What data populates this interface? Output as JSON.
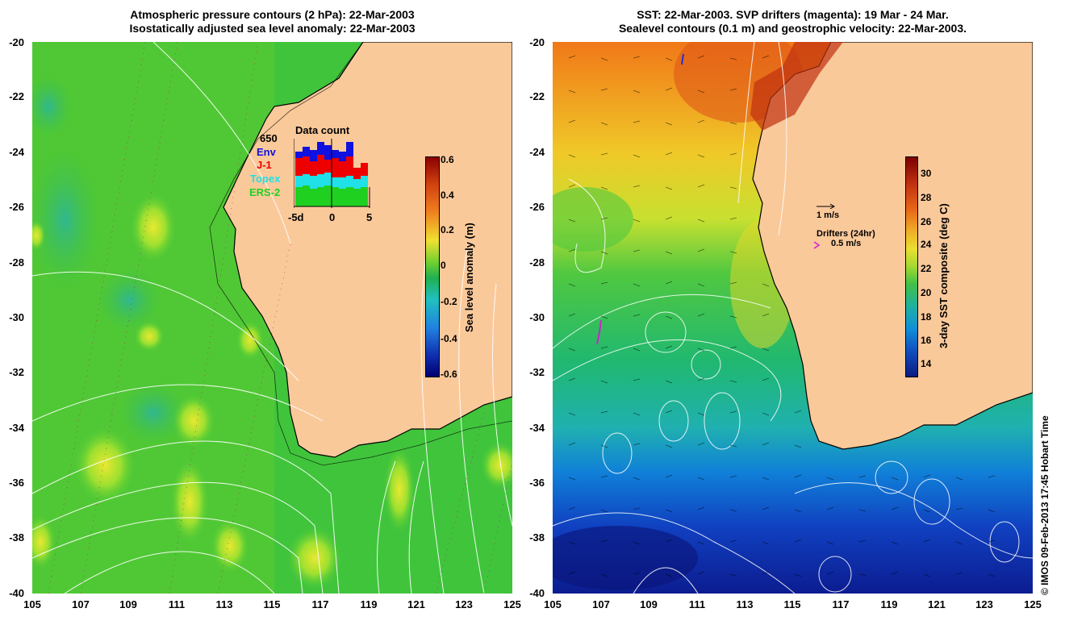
{
  "left_panel": {
    "title_line1": "Atmospheric pressure contours (2 hPa): 22-Mar-2003",
    "title_line2": "Isostatically adjusted sea level anomaly: 22-Mar-2003",
    "colorbar": {
      "label": "Sea level anomaly (m)",
      "ticks": [
        "0.6",
        "0.4",
        "0.2",
        "0",
        "-0.2",
        "-0.4",
        "-0.6"
      ],
      "range": [
        -0.6,
        0.6
      ]
    },
    "inset": {
      "title": "Data count",
      "max_count": "650",
      "legend": [
        {
          "label": "Env",
          "color": "#1010e0"
        },
        {
          "label": "J-1",
          "color": "#ee0000"
        },
        {
          "label": "Topex",
          "color": "#20e0e8"
        },
        {
          "label": "ERS-2",
          "color": "#20d020"
        }
      ],
      "x_ticks": [
        "-5d",
        "0",
        "5"
      ]
    }
  },
  "right_panel": {
    "title_line1": "SST: 22-Mar-2003. SVP drifters (magenta): 19 Mar - 24 Mar.",
    "title_line2": "Sealevel contours (0.1 m) and geostrophic velocity: 22-Mar-2003.",
    "colorbar": {
      "label": "3-day SST composite (deg C)",
      "ticks": [
        "30",
        "28",
        "26",
        "24",
        "22",
        "20",
        "18",
        "16",
        "14"
      ],
      "range": [
        13,
        31
      ]
    },
    "velocity_scale": "1 m/s",
    "drifters_title": "Drifters (24hr)",
    "drifters_scale": "0.5 m/s"
  },
  "axes": {
    "lat_ticks": [
      "-20",
      "-22",
      "-24",
      "-26",
      "-28",
      "-30",
      "-32",
      "-34",
      "-36",
      "-38",
      "-40"
    ],
    "lon_ticks": [
      "105",
      "107",
      "109",
      "111",
      "113",
      "115",
      "117",
      "119",
      "121",
      "123",
      "125"
    ]
  },
  "credit": "© IMOS 09-Feb-2013 17:45 Hobart Time",
  "colors": {
    "land": "#fac99a",
    "ocean_base": "#38c038",
    "coast": "#000000",
    "contour": "#ffffff"
  }
}
